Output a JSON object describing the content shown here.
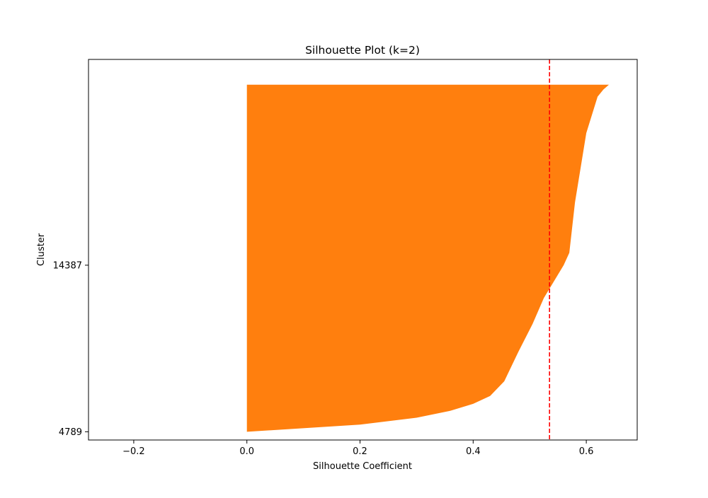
{
  "chart_data": {
    "type": "area",
    "title": "Silhouette Plot (k=2)",
    "xlabel": "Silhouette Coefficient",
    "ylabel": "Cluster",
    "xlim": [
      -0.28,
      0.69
    ],
    "ylim": [
      4314,
      26245
    ],
    "x_ticks": [
      -0.2,
      0.0,
      0.2,
      0.4,
      0.6
    ],
    "x_tick_labels": [
      "−0.2",
      "0.0",
      "0.2",
      "0.4",
      "0.6"
    ],
    "y_ticks": [
      4789,
      14387
    ],
    "y_tick_labels": [
      "4789",
      "14387"
    ],
    "colors": {
      "fill": "#ff7f0e",
      "avg_line": "#ff0000"
    },
    "average_silhouette": 0.535,
    "series": [
      {
        "cluster_label": 1,
        "y_start": 4789,
        "y_end": 24789,
        "profile": [
          {
            "y": 4789,
            "value": 0.0
          },
          {
            "y": 5200,
            "value": 0.2
          },
          {
            "y": 5600,
            "value": 0.3
          },
          {
            "y": 6000,
            "value": 0.36
          },
          {
            "y": 6400,
            "value": 0.4
          },
          {
            "y": 6850,
            "value": 0.43
          },
          {
            "y": 7700,
            "value": 0.455
          },
          {
            "y": 9400,
            "value": 0.48
          },
          {
            "y": 11000,
            "value": 0.505
          },
          {
            "y": 12500,
            "value": 0.525
          },
          {
            "y": 14387,
            "value": 0.56
          },
          {
            "y": 15100,
            "value": 0.57
          },
          {
            "y": 18000,
            "value": 0.58
          },
          {
            "y": 20000,
            "value": 0.59
          },
          {
            "y": 22000,
            "value": 0.6
          },
          {
            "y": 24100,
            "value": 0.62
          },
          {
            "y": 24500,
            "value": 0.63
          },
          {
            "y": 24789,
            "value": 0.64
          }
        ]
      }
    ],
    "grid": false,
    "legend": "none"
  }
}
